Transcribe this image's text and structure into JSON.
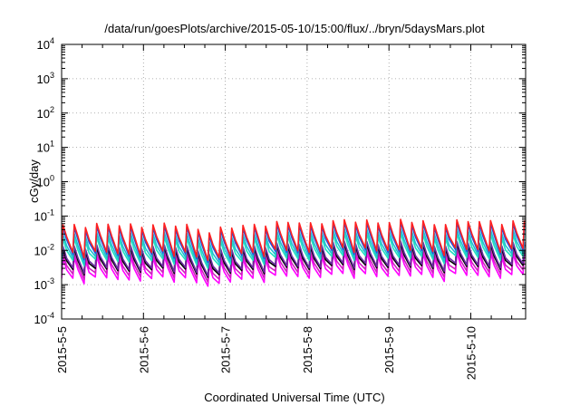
{
  "chart_data": {
    "type": "line",
    "title": "/data/run/goesPlots/archive/2015-05-10/15:00/flux/../bryn/5daysMars.plot",
    "xlabel": "Coordinated Universal Time (UTC)",
    "ylabel": "cGy/day",
    "yscale": "log",
    "ylim": [
      0.0001,
      10000
    ],
    "xlim": [
      "2015-05-05 00:00",
      "2015-05-10 16:00"
    ],
    "grid": true,
    "legend": "none",
    "x_tick_labels": [
      "2015-5-5",
      "2015-5-6",
      "2015-5-7",
      "2015-5-8",
      "2015-5-9",
      "2015-5-10"
    ],
    "y_ticks": [
      {
        "value": 0.0001,
        "base": "10",
        "exp": "-4"
      },
      {
        "value": 0.001,
        "base": "10",
        "exp": "-3"
      },
      {
        "value": 0.01,
        "base": "10",
        "exp": "-2"
      },
      {
        "value": 0.1,
        "base": "10",
        "exp": "-1"
      },
      {
        "value": 1,
        "base": "10",
        "exp": "0"
      },
      {
        "value": 10,
        "base": "10",
        "exp": "1"
      },
      {
        "value": 100,
        "base": "10",
        "exp": "2"
      },
      {
        "value": 1000,
        "base": "10",
        "exp": "3"
      },
      {
        "value": 10000,
        "base": "10",
        "exp": "4"
      }
    ],
    "cycle_hours": 3.3,
    "series": [
      {
        "color": "#ff2020",
        "peak": 0.055,
        "trough": 0.0085
      },
      {
        "color": "#2050e0",
        "peak": 0.045,
        "trough": 0.0075
      },
      {
        "color": "#1fbfd0",
        "peak": 0.03,
        "trough": 0.006
      },
      {
        "color": "#20e0c0",
        "peak": 0.022,
        "trough": 0.005
      },
      {
        "color": "#6a2aa0",
        "peak": 0.013,
        "trough": 0.003
      },
      {
        "color": "#000000",
        "peak": 0.011,
        "trough": 0.0027
      },
      {
        "color": "#d020c0",
        "peak": 0.008,
        "trough": 0.002
      },
      {
        "color": "#ff00ff",
        "peak": 0.006,
        "trough": 0.0015
      }
    ],
    "level_factors": [
      {
        "day": 0.0,
        "factor": 1.0
      },
      {
        "day": 1.5,
        "factor": 1.0
      },
      {
        "day": 1.8,
        "factor": 0.65
      },
      {
        "day": 2.3,
        "factor": 1.0
      },
      {
        "day": 2.5,
        "factor": 1.1
      },
      {
        "day": 3.0,
        "factor": 1.2
      },
      {
        "day": 3.05,
        "factor": 1.05
      },
      {
        "day": 3.1,
        "factor": 1.3
      },
      {
        "day": 4.5,
        "factor": 1.25
      },
      {
        "day": 4.6,
        "factor": 0.85
      },
      {
        "day": 4.7,
        "factor": 1.25
      },
      {
        "day": 5.67,
        "factor": 1.25
      }
    ]
  }
}
